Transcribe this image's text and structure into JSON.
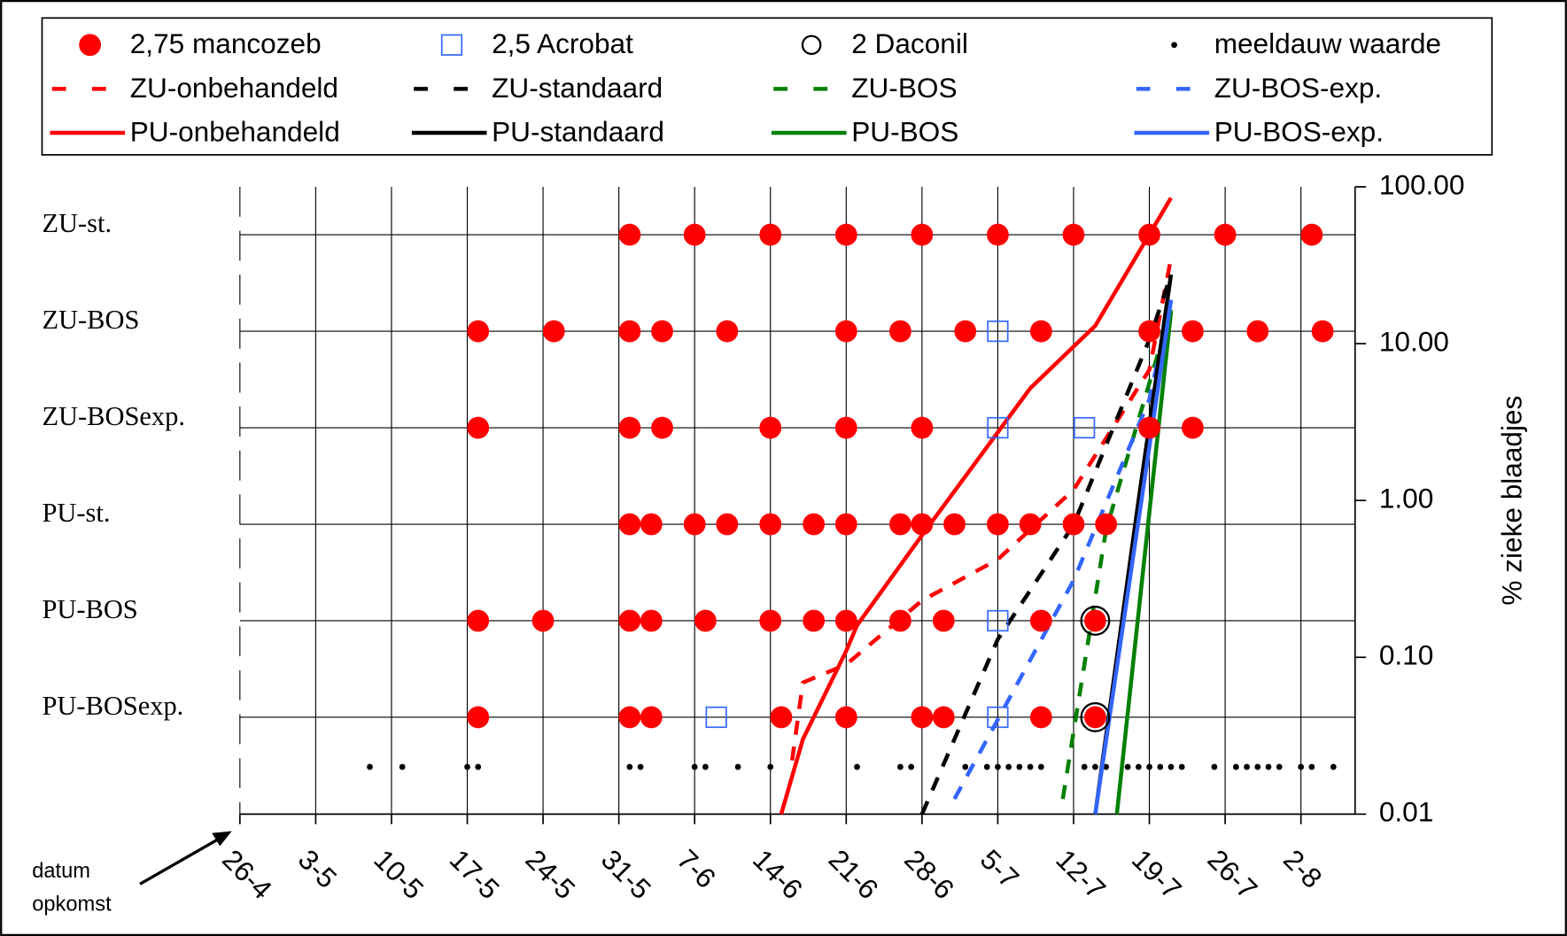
{
  "chart_data": {
    "type": "line",
    "y_label": "% zieke blaadjes",
    "annotation": [
      "datum",
      "opkomst"
    ],
    "xlim": [
      "26-4",
      "7-8"
    ],
    "xticks": [
      "26-4",
      "3-5",
      "10-5",
      "17-5",
      "24-5",
      "31-5",
      "7-6",
      "14-6",
      "21-6",
      "28-6",
      "5-7",
      "12-7",
      "19-7",
      "26-7",
      "2-8"
    ],
    "ylim": [
      0.01,
      100
    ],
    "log_y": true,
    "yticks": [
      0.01,
      {
        "value": 0.1,
        "label": "0.10"
      },
      {
        "value": 1,
        "label": "1.00"
      },
      {
        "value": 10,
        "label": "10.00"
      },
      {
        "value": 100,
        "label": "100.00"
      }
    ],
    "grid": true,
    "legend": "top",
    "rows": [
      "ZU-st.",
      "ZU-BOS",
      "ZU-BOSexp.",
      "PU-st.",
      "PU-BOS",
      "PU-BOSexp."
    ],
    "sprays": [
      {
        "name": "2,75 mancozeb",
        "color": "#ff0000",
        "marker": "circle",
        "x": [
          [
            "1-6",
            "7-6",
            "14-6",
            "21-6",
            "28-6",
            "5-7",
            "12-7",
            "19-7",
            "26-7",
            "3-8"
          ],
          [
            "18-5",
            "25-5",
            "1-6",
            "4-6",
            "10-6",
            "21-6",
            "26-6",
            "2-7",
            "9-7",
            "19-7",
            "23-7",
            "29-7",
            "4-8"
          ],
          [
            "18-5",
            "1-6",
            "4-6",
            "14-6",
            "21-6",
            "28-6",
            "19-7",
            "23-7"
          ],
          [
            "1-6",
            "3-6",
            "7-6",
            "10-6",
            "14-6",
            "18-6",
            "21-6",
            "26-6",
            "28-6",
            "1-7",
            "5-7",
            "8-7",
            "12-7",
            "15-7"
          ],
          [
            "18-5",
            "24-5",
            "1-6",
            "3-6",
            "8-6",
            "14-6",
            "18-6",
            "21-6",
            "26-6",
            "30-6",
            "9-7",
            "14-7"
          ],
          [
            "18-5",
            "1-6",
            "3-6",
            "15-6",
            "21-6",
            "28-6",
            "30-6",
            "9-7",
            "14-7"
          ]
        ]
      },
      {
        "name": "2,5 Acrobat",
        "color": "#3366ff",
        "marker": "square",
        "x": [
          [],
          [
            "5-7"
          ],
          [
            "5-7",
            "13-7"
          ],
          [],
          [
            "5-7"
          ],
          [
            "9-6",
            "5-7"
          ]
        ]
      },
      {
        "name": "2 Daconil",
        "color": "#000000",
        "marker": "ring",
        "x": [
          [],
          [],
          [],
          [],
          [
            "14-7"
          ],
          [
            "14-7"
          ]
        ]
      }
    ],
    "series": [
      {
        "name": "meeldauw waarde",
        "color": "#000000",
        "marker": "dot",
        "x": [
          "8-5",
          "11-5",
          "17-5",
          "18-5",
          "1-6",
          "2-6",
          "7-6",
          "8-6",
          "11-6",
          "14-6",
          "22-6",
          "26-6",
          "27-6",
          "2-7",
          "4-7",
          "5-7",
          "6-7",
          "7-7",
          "8-7",
          "9-7",
          "13-7",
          "14-7",
          "15-7",
          "17-7",
          "18-7",
          "19-7",
          "20-7",
          "21-7",
          "22-7",
          "25-7",
          "27-7",
          "28-7",
          "29-7",
          "30-7",
          "31-7",
          "2-8",
          "3-8",
          "5-8"
        ],
        "values": [
          0.02,
          0.02,
          0.02,
          0.02,
          0.02,
          0.02,
          0.02,
          0.02,
          0.02,
          0.02,
          0.02,
          0.02,
          0.02,
          0.02,
          0.02,
          0.02,
          0.02,
          0.02,
          0.02,
          0.02,
          0.02,
          0.02,
          0.02,
          0.02,
          0.02,
          0.02,
          0.02,
          0.02,
          0.02,
          0.02,
          0.02,
          0.02,
          0.02,
          0.02,
          0.02,
          0.02,
          0.02,
          0.02
        ]
      },
      {
        "name": "ZU-onbehandeld",
        "color": "#ff0000",
        "dashed": true,
        "x": [
          "16-6",
          "17-6",
          "21-6",
          "28-6",
          "5-7",
          "12-7",
          "19-7",
          "21-7"
        ],
        "values": [
          0.022,
          0.069,
          0.09,
          0.23,
          0.42,
          1.17,
          6.8,
          35
        ]
      },
      {
        "name": "ZU-standaard",
        "color": "#000000",
        "dashed": true,
        "x": [
          "28-6",
          "5-7",
          "12-7",
          "19-7",
          "21-7"
        ],
        "values": [
          0.01,
          0.13,
          0.7,
          10.6,
          27.5
        ]
      },
      {
        "name": "ZU-BOS",
        "color": "#008000",
        "dashed": true,
        "x": [
          "11-7",
          "15-7",
          "21-7"
        ],
        "values": [
          0.0125,
          0.65,
          16.5
        ]
      },
      {
        "name": "ZU-BOS-exp.",
        "color": "#3366ff",
        "dashed": true,
        "x": [
          "1-7",
          "5-7",
          "12-7",
          "19-7",
          "21-7"
        ],
        "values": [
          0.0125,
          0.04,
          0.31,
          4.4,
          19
        ]
      },
      {
        "name": "PU-onbehandeld",
        "color": "#ff0000",
        "x": [
          "15-6",
          "17-6",
          "21-6",
          "22-6",
          "28-6",
          "8-7",
          "14-7",
          "21-7"
        ],
        "values": [
          0.01,
          0.03,
          0.11,
          0.16,
          0.6,
          5.2,
          13,
          85
        ]
      },
      {
        "name": "PU-standaard",
        "color": "#000000",
        "x": [
          "14-7",
          "18-7",
          "21-7"
        ],
        "values": [
          0.01,
          1.0,
          27.5
        ]
      },
      {
        "name": "PU-BOS",
        "color": "#008000",
        "x": [
          "16-7",
          "21-7"
        ],
        "values": [
          0.01,
          16
        ]
      },
      {
        "name": "PU-BOS-exp.",
        "color": "#3366ff",
        "x": [
          "14-7",
          "21-7"
        ],
        "values": [
          0.01,
          19
        ]
      }
    ]
  }
}
